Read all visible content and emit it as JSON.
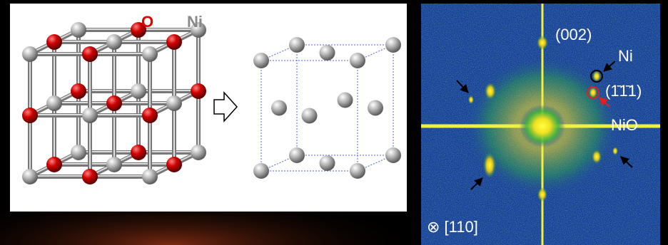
{
  "labels": {
    "oxygen": "O",
    "nickel": "Ni"
  },
  "fft": {
    "plane_002": "(002)",
    "ni": "Ni",
    "plane_111": "(1̄1̄1)",
    "nio": "NiO",
    "zone_axis": "⊗ [110]"
  }
}
